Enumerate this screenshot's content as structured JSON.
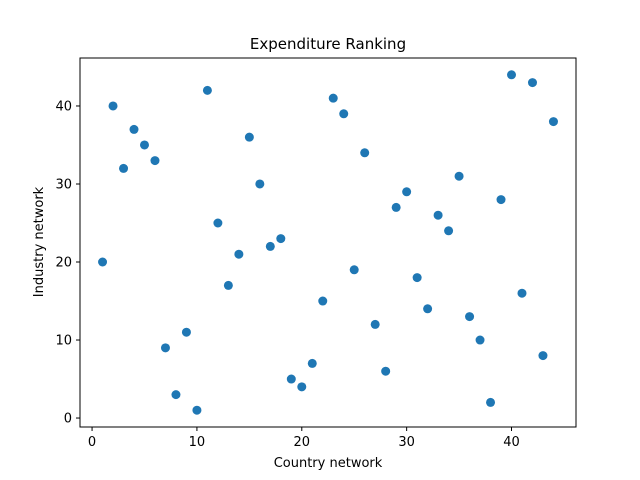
{
  "chart_data": {
    "type": "scatter",
    "title": "Expenditure Ranking",
    "xlabel": "Country network",
    "ylabel": "Industry network",
    "xlim": [
      -1.15,
      46.15
    ],
    "ylim": [
      -1.15,
      46.15
    ],
    "xticks": [
      0,
      10,
      20,
      30,
      40
    ],
    "yticks": [
      0,
      10,
      20,
      30,
      40
    ],
    "grid": false,
    "marker_color": "#1f77b4",
    "points": [
      {
        "x": 1,
        "y": 20
      },
      {
        "x": 2,
        "y": 40
      },
      {
        "x": 3,
        "y": 32
      },
      {
        "x": 4,
        "y": 37
      },
      {
        "x": 5,
        "y": 35
      },
      {
        "x": 6,
        "y": 33
      },
      {
        "x": 7,
        "y": 9
      },
      {
        "x": 8,
        "y": 3
      },
      {
        "x": 9,
        "y": 11
      },
      {
        "x": 10,
        "y": 1
      },
      {
        "x": 11,
        "y": 42
      },
      {
        "x": 12,
        "y": 25
      },
      {
        "x": 13,
        "y": 17
      },
      {
        "x": 14,
        "y": 21
      },
      {
        "x": 15,
        "y": 36
      },
      {
        "x": 16,
        "y": 30
      },
      {
        "x": 17,
        "y": 22
      },
      {
        "x": 18,
        "y": 23
      },
      {
        "x": 19,
        "y": 5
      },
      {
        "x": 20,
        "y": 4
      },
      {
        "x": 21,
        "y": 7
      },
      {
        "x": 22,
        "y": 15
      },
      {
        "x": 23,
        "y": 41
      },
      {
        "x": 24,
        "y": 39
      },
      {
        "x": 25,
        "y": 19
      },
      {
        "x": 26,
        "y": 34
      },
      {
        "x": 27,
        "y": 12
      },
      {
        "x": 28,
        "y": 6
      },
      {
        "x": 29,
        "y": 27
      },
      {
        "x": 30,
        "y": 29
      },
      {
        "x": 31,
        "y": 18
      },
      {
        "x": 32,
        "y": 14
      },
      {
        "x": 33,
        "y": 26
      },
      {
        "x": 34,
        "y": 24
      },
      {
        "x": 35,
        "y": 31
      },
      {
        "x": 36,
        "y": 13
      },
      {
        "x": 37,
        "y": 10
      },
      {
        "x": 38,
        "y": 2
      },
      {
        "x": 39,
        "y": 28
      },
      {
        "x": 40,
        "y": 44
      },
      {
        "x": 41,
        "y": 16
      },
      {
        "x": 42,
        "y": 43
      },
      {
        "x": 43,
        "y": 8
      },
      {
        "x": 44,
        "y": 38
      }
    ]
  }
}
